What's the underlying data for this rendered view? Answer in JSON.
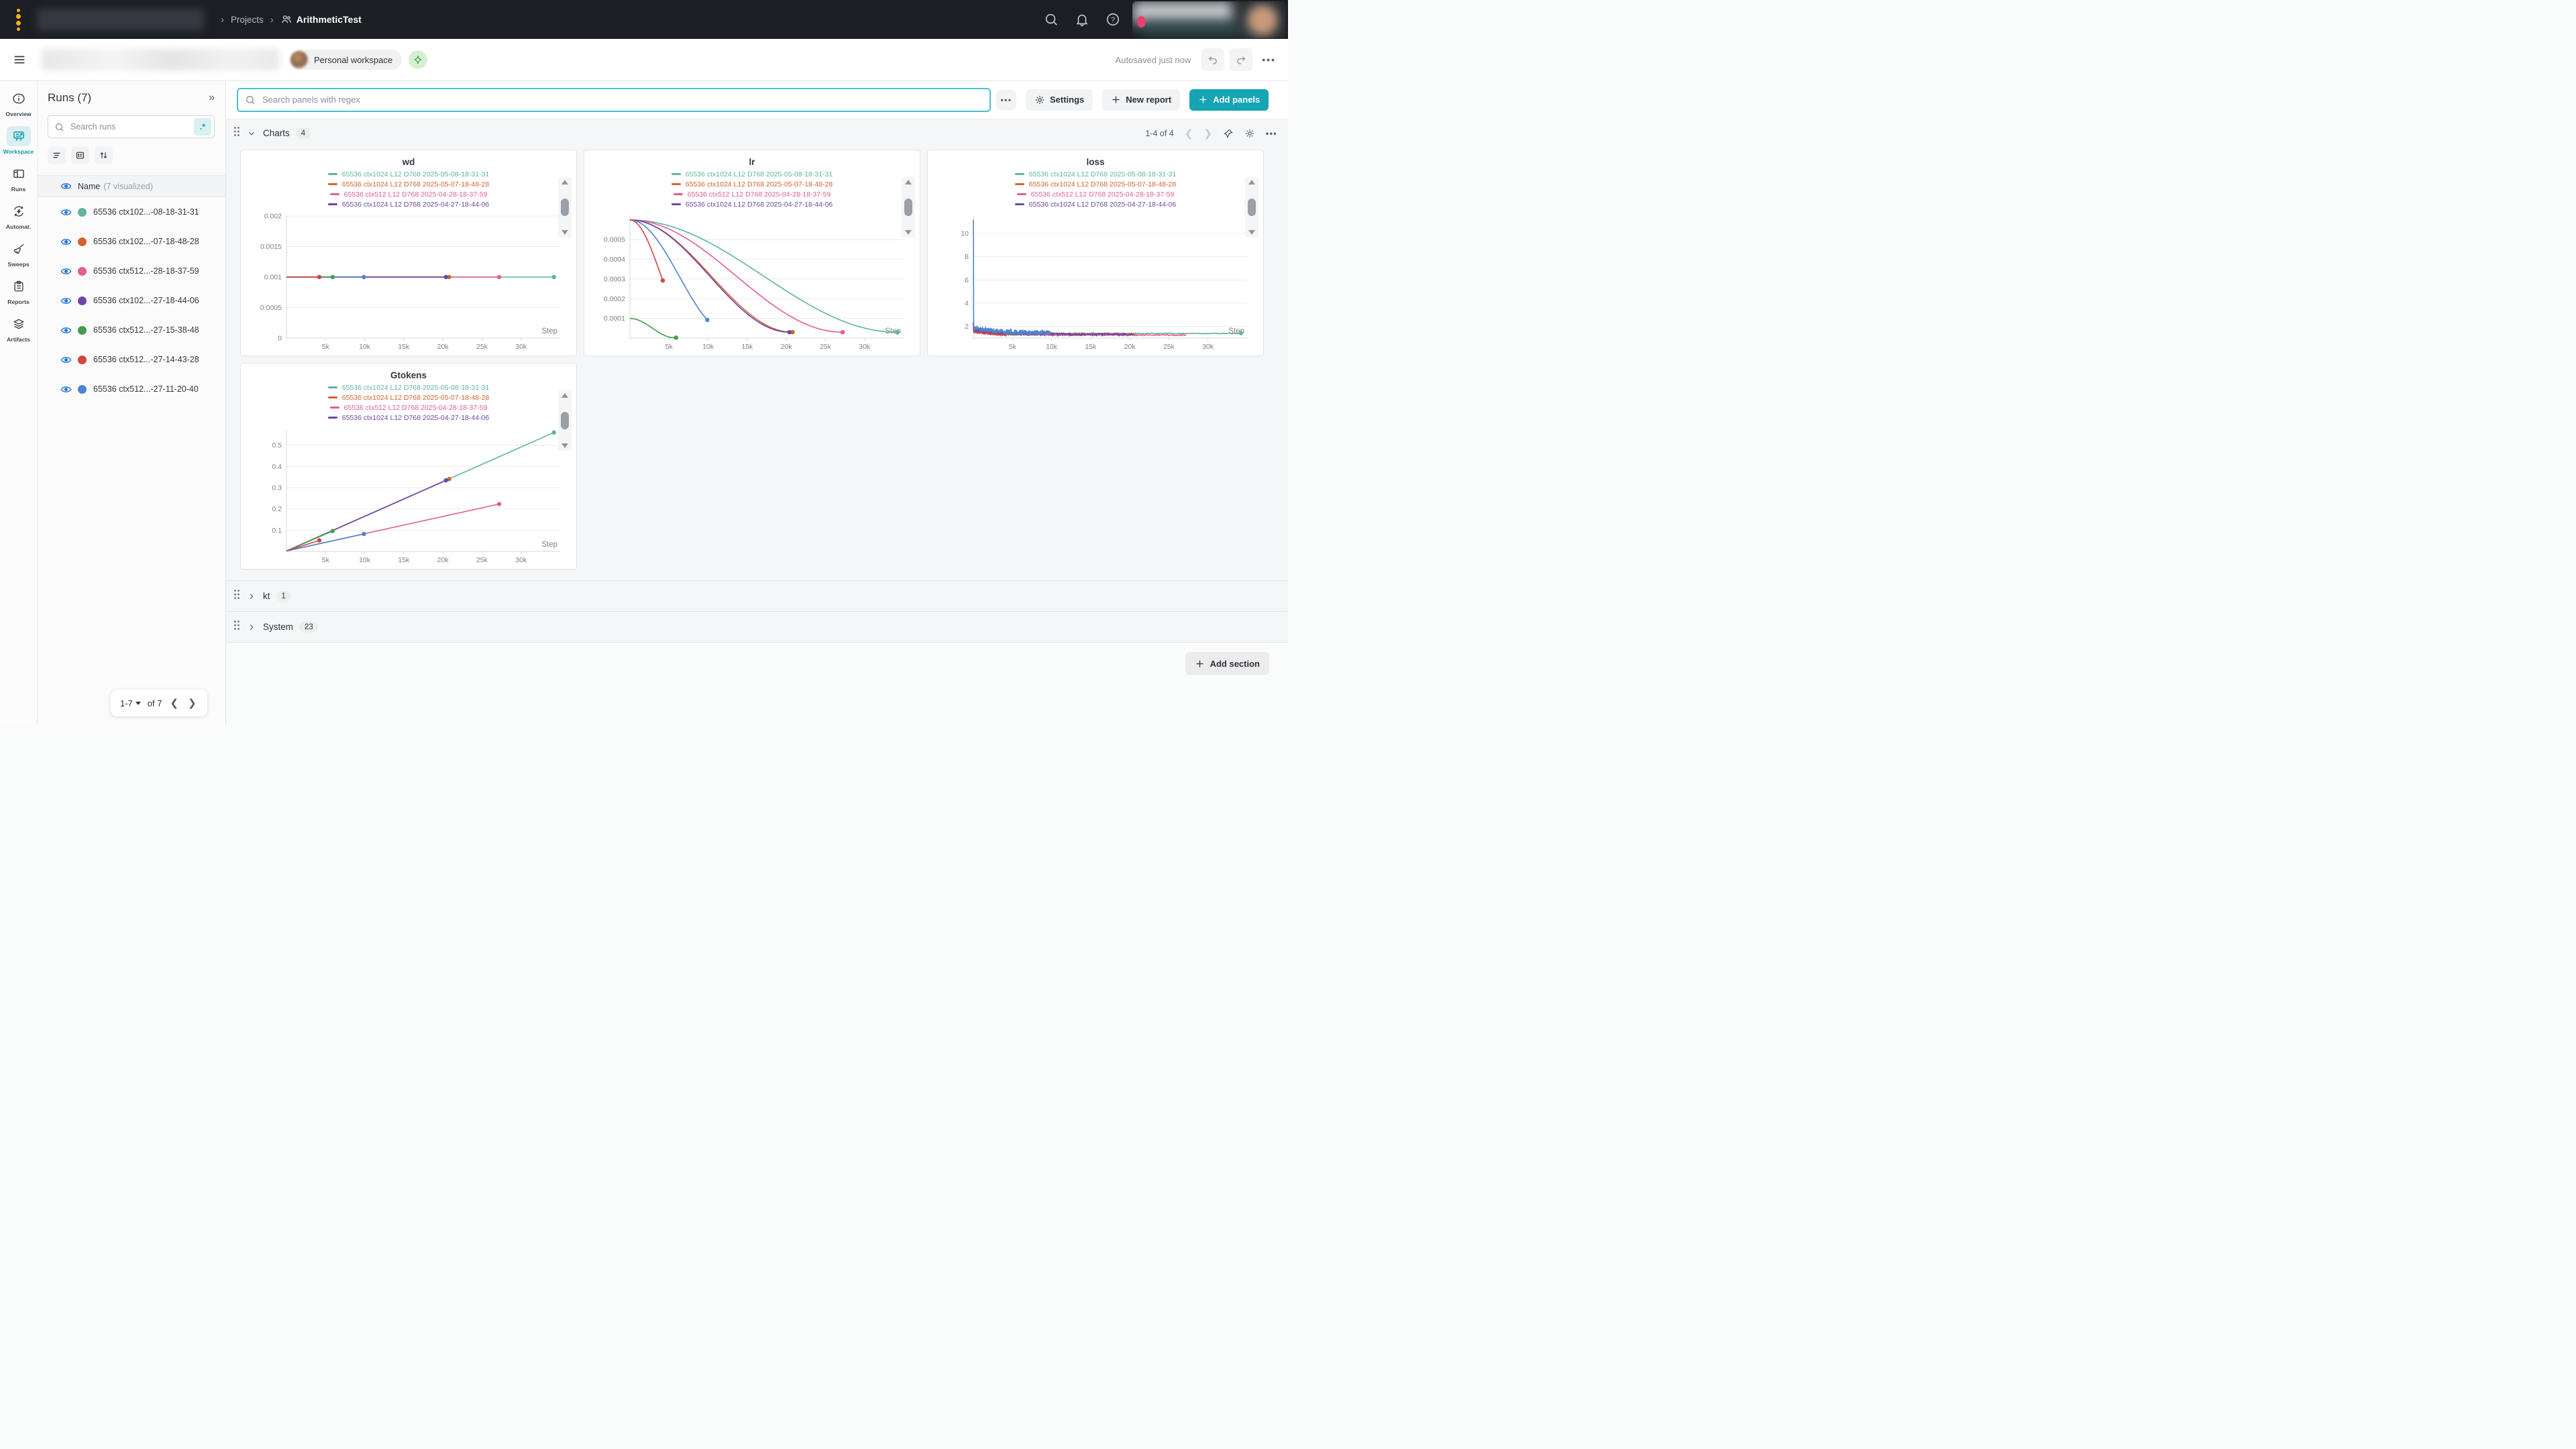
{
  "topnav": {
    "breadcrumb": {
      "projects_label": "Projects",
      "project_name": "ArithmeticTest"
    }
  },
  "header": {
    "workspace_pill": "Personal workspace",
    "autosaved": "Autosaved just now"
  },
  "rail": {
    "items": [
      {
        "label": "Overview",
        "icon": "info",
        "active": false
      },
      {
        "label": "Workspace",
        "icon": "workspace",
        "active": true
      },
      {
        "label": "Runs",
        "icon": "table",
        "active": false
      },
      {
        "label": "Automat.",
        "icon": "automations",
        "active": false
      },
      {
        "label": "Sweeps",
        "icon": "broom",
        "active": false
      },
      {
        "label": "Reports",
        "icon": "clipboard",
        "active": false
      },
      {
        "label": "Artifacts",
        "icon": "layers",
        "active": false
      }
    ]
  },
  "runs_panel": {
    "title": "Runs (7)",
    "collapse_icon": "»",
    "search_placeholder": "Search runs",
    "regex_button": ".*",
    "name_header": "Name",
    "visualized_note": "(7 visualized)",
    "pager": {
      "range": "1-7",
      "of": "of 7"
    }
  },
  "runs": [
    {
      "display": "65536 ctx102...-08-18-31-31",
      "full": "65536 ctx1024 L12 D768 2025-05-08-18-31-31",
      "color": "#5eb3a1"
    },
    {
      "display": "65536 ctx102...-07-18-48-28",
      "full": "65536 ctx1024 L12 D768 2025-05-07-18-48-28",
      "color": "#d4622f"
    },
    {
      "display": "65536 ctx512...-28-18-37-59",
      "full": "65536 ctx512 L12 D768 2025-04-28-18-37-59",
      "color": "#e45c92"
    },
    {
      "display": "65536 ctx102...-27-18-44-06",
      "full": "65536 ctx1024 L12 D768 2025-04-27-18-44-06",
      "color": "#6e46a8"
    },
    {
      "display": "65536 ctx512...-27-15-38-48",
      "full": "65536 ctx512 L12 D768 2025-04-27-15-38-48",
      "color": "#3f9e4f"
    },
    {
      "display": "65536 ctx512...-27-14-43-28",
      "full": "65536 ctx512 L12 D768 2025-04-27-14-43-28",
      "color": "#d24444"
    },
    {
      "display": "65536 ctx512...-27-11-20-40",
      "full": "65536 ctx512 L12 D768 2025-04-27-11-20-40",
      "color": "#4f83cc"
    }
  ],
  "toolbar": {
    "search_placeholder": "Search panels with regex",
    "settings_label": "Settings",
    "new_report_label": "New report",
    "add_panels_label": "Add panels"
  },
  "sections": {
    "charts": {
      "label": "Charts",
      "count": "4",
      "pager": "1-4 of 4"
    },
    "kt": {
      "label": "kt",
      "count": "1"
    },
    "system": {
      "label": "System",
      "count": "23"
    },
    "add_section_label": "Add section"
  },
  "chart_data": [
    {
      "type": "line",
      "title": "wd",
      "xlabel": "Step",
      "xlim": [
        0,
        35000
      ],
      "ylim": [
        0,
        0.002
      ],
      "xticks": [
        {
          "v": 5000,
          "l": "5k"
        },
        {
          "v": 10000,
          "l": "10k"
        },
        {
          "v": 15000,
          "l": "15k"
        },
        {
          "v": 20000,
          "l": "20k"
        },
        {
          "v": 25000,
          "l": "25k"
        },
        {
          "v": 30000,
          "l": "30k"
        }
      ],
      "yticks": [
        {
          "v": 0,
          "l": "0"
        },
        {
          "v": 0.0005,
          "l": "0.0005"
        },
        {
          "v": 0.001,
          "l": "0.001"
        },
        {
          "v": 0.0015,
          "l": "0.0015"
        },
        {
          "v": 0.002,
          "l": "0.002"
        }
      ],
      "legend_runs": [
        0,
        1,
        2,
        3
      ],
      "series": [
        {
          "run": 0,
          "kind": "flat",
          "y": 0.001,
          "x_end": 34200,
          "dot": true
        },
        {
          "run": 2,
          "kind": "flat",
          "y": 0.001,
          "x_end": 27200,
          "dot": true
        },
        {
          "run": 1,
          "kind": "flat",
          "y": 0.001,
          "x_end": 20800,
          "dot": true
        },
        {
          "run": 3,
          "kind": "flat",
          "y": 0.001,
          "x_end": 20400,
          "dot": true
        },
        {
          "run": 6,
          "kind": "flat",
          "y": 0.001,
          "x_end": 9900,
          "dot": true
        },
        {
          "run": 4,
          "kind": "flat",
          "y": 0.001,
          "x_end": 5900,
          "dot": true
        },
        {
          "run": 5,
          "kind": "flat",
          "y": 0.001,
          "x_end": 4200,
          "dot": true
        }
      ]
    },
    {
      "type": "line",
      "title": "lr",
      "xlabel": "Step",
      "xlim": [
        0,
        35000
      ],
      "ylim": [
        0,
        0.00062
      ],
      "xticks": [
        {
          "v": 5000,
          "l": "5k"
        },
        {
          "v": 10000,
          "l": "10k"
        },
        {
          "v": 15000,
          "l": "15k"
        },
        {
          "v": 20000,
          "l": "20k"
        },
        {
          "v": 25000,
          "l": "25k"
        },
        {
          "v": 30000,
          "l": "30k"
        }
      ],
      "yticks": [
        {
          "v": 0.0001,
          "l": "0.0001"
        },
        {
          "v": 0.0002,
          "l": "0.0002"
        },
        {
          "v": 0.0003,
          "l": "0.0003"
        },
        {
          "v": 0.0004,
          "l": "0.0004"
        },
        {
          "v": 0.0005,
          "l": "0.0005"
        }
      ],
      "legend_runs": [
        0,
        1,
        2,
        3
      ],
      "series": [
        {
          "run": 0,
          "kind": "cosine",
          "start": 0.0006,
          "floor": 3e-05,
          "T": 34200,
          "x_end": 34200,
          "dot": true
        },
        {
          "run": 1,
          "kind": "cosine",
          "start": 0.0006,
          "floor": 3e-05,
          "T": 20800,
          "x_end": 20800,
          "dot": true
        },
        {
          "run": 2,
          "kind": "cosine",
          "start": 0.0006,
          "floor": 3e-05,
          "T": 27200,
          "x_end": 27200,
          "dot": true
        },
        {
          "run": 3,
          "kind": "cosine",
          "start": 0.0006,
          "floor": 3e-05,
          "T": 20400,
          "x_end": 20400,
          "dot": true
        },
        {
          "run": 6,
          "kind": "cosine",
          "start": 0.0006,
          "floor": 3e-05,
          "T": 12600,
          "x_end": 9900,
          "dot": true
        },
        {
          "run": 5,
          "kind": "cosine",
          "start": 0.0006,
          "floor": 3e-05,
          "T": 8000,
          "x_end": 4200,
          "dot": true
        },
        {
          "run": 4,
          "kind": "cosine",
          "start": 0.0001,
          "floor": 2e-06,
          "T": 5700,
          "x_end": 5900,
          "dot": true
        }
      ]
    },
    {
      "type": "line",
      "title": "loss",
      "xlabel": "Step",
      "xlim": [
        0,
        35000
      ],
      "ylim": [
        1.0,
        11.5
      ],
      "xticks": [
        {
          "v": 5000,
          "l": "5k"
        },
        {
          "v": 10000,
          "l": "10k"
        },
        {
          "v": 15000,
          "l": "15k"
        },
        {
          "v": 20000,
          "l": "20k"
        },
        {
          "v": 25000,
          "l": "25k"
        },
        {
          "v": 30000,
          "l": "30k"
        }
      ],
      "yticks": [
        {
          "v": 2,
          "l": "2"
        },
        {
          "v": 4,
          "l": "4"
        },
        {
          "v": 6,
          "l": "6"
        },
        {
          "v": 8,
          "l": "8"
        },
        {
          "v": 10,
          "l": "10"
        }
      ],
      "legend_runs": [
        0,
        1,
        2,
        3
      ],
      "series": [
        {
          "run": 0,
          "kind": "noisy",
          "seed": 11,
          "spike": 2.3,
          "mean_start": 1.6,
          "mean_end": 1.4,
          "amp": 0.035,
          "x_end": 34200,
          "dot": true
        },
        {
          "run": 2,
          "kind": "noisy",
          "seed": 12,
          "spike": 2.2,
          "mean_start": 1.5,
          "mean_end": 1.26,
          "amp": 0.05,
          "x_end": 27200,
          "dot": false
        },
        {
          "run": 1,
          "kind": "noisy",
          "seed": 13,
          "spike": 2.2,
          "mean_start": 1.6,
          "mean_end": 1.35,
          "amp": 0.06,
          "x_end": 20800,
          "dot": false
        },
        {
          "run": 4,
          "kind": "noisy",
          "seed": 14,
          "spike": 2.3,
          "mean_start": 1.7,
          "mean_end": 1.3,
          "amp": 0.07,
          "x_end": 5900,
          "dot": false
        },
        {
          "run": 5,
          "kind": "noisy",
          "seed": 15,
          "spike": 2.4,
          "mean_start": 1.6,
          "mean_end": 1.22,
          "amp": 0.13,
          "x_end": 4200,
          "dot": false
        },
        {
          "run": 3,
          "kind": "noisy",
          "seed": 16,
          "spike": 2.3,
          "mean_start": 1.75,
          "mean_end": 1.32,
          "amp": 0.1,
          "x_end": 20400,
          "dot": false
        },
        {
          "run": 6,
          "kind": "noisy",
          "seed": 17,
          "spike": 11.2,
          "mean_start": 1.9,
          "mean_end": 1.45,
          "amp": 0.22,
          "x_end": 9900,
          "dot": false
        }
      ]
    },
    {
      "type": "line",
      "title": "Gtokens",
      "xlabel": "Step",
      "xlim": [
        0,
        35000
      ],
      "ylim": [
        0,
        0.575
      ],
      "xticks": [
        {
          "v": 5000,
          "l": "5k"
        },
        {
          "v": 10000,
          "l": "10k"
        },
        {
          "v": 15000,
          "l": "15k"
        },
        {
          "v": 20000,
          "l": "20k"
        },
        {
          "v": 25000,
          "l": "25k"
        },
        {
          "v": 30000,
          "l": "30k"
        }
      ],
      "yticks": [
        {
          "v": 0.1,
          "l": "0.1"
        },
        {
          "v": 0.2,
          "l": "0.2"
        },
        {
          "v": 0.3,
          "l": "0.3"
        },
        {
          "v": 0.4,
          "l": "0.4"
        },
        {
          "v": 0.5,
          "l": "0.5"
        }
      ],
      "legend_runs": [
        0,
        1,
        2,
        3
      ],
      "series": [
        {
          "run": 0,
          "kind": "linear",
          "x_end": 34200,
          "y_end": 0.56,
          "dot": true
        },
        {
          "run": 1,
          "kind": "linear",
          "x_end": 20800,
          "y_end": 0.341,
          "dot": true
        },
        {
          "run": 3,
          "kind": "linear",
          "x_end": 20400,
          "y_end": 0.335,
          "dot": true
        },
        {
          "run": 2,
          "kind": "linear",
          "x_end": 27200,
          "y_end": 0.223,
          "dot": true
        },
        {
          "run": 6,
          "kind": "linear",
          "x_end": 9900,
          "y_end": 0.082,
          "dot": true
        },
        {
          "run": 4,
          "kind": "linear",
          "x_end": 5900,
          "y_end": 0.096,
          "dot": true
        },
        {
          "run": 5,
          "kind": "linear",
          "x_end": 4200,
          "y_end": 0.052,
          "dot": true
        }
      ]
    }
  ],
  "colors": {
    "accent_teal": "#14a4b4",
    "nav_bg": "#1b1e22",
    "notification_dot": "#e8406f"
  }
}
